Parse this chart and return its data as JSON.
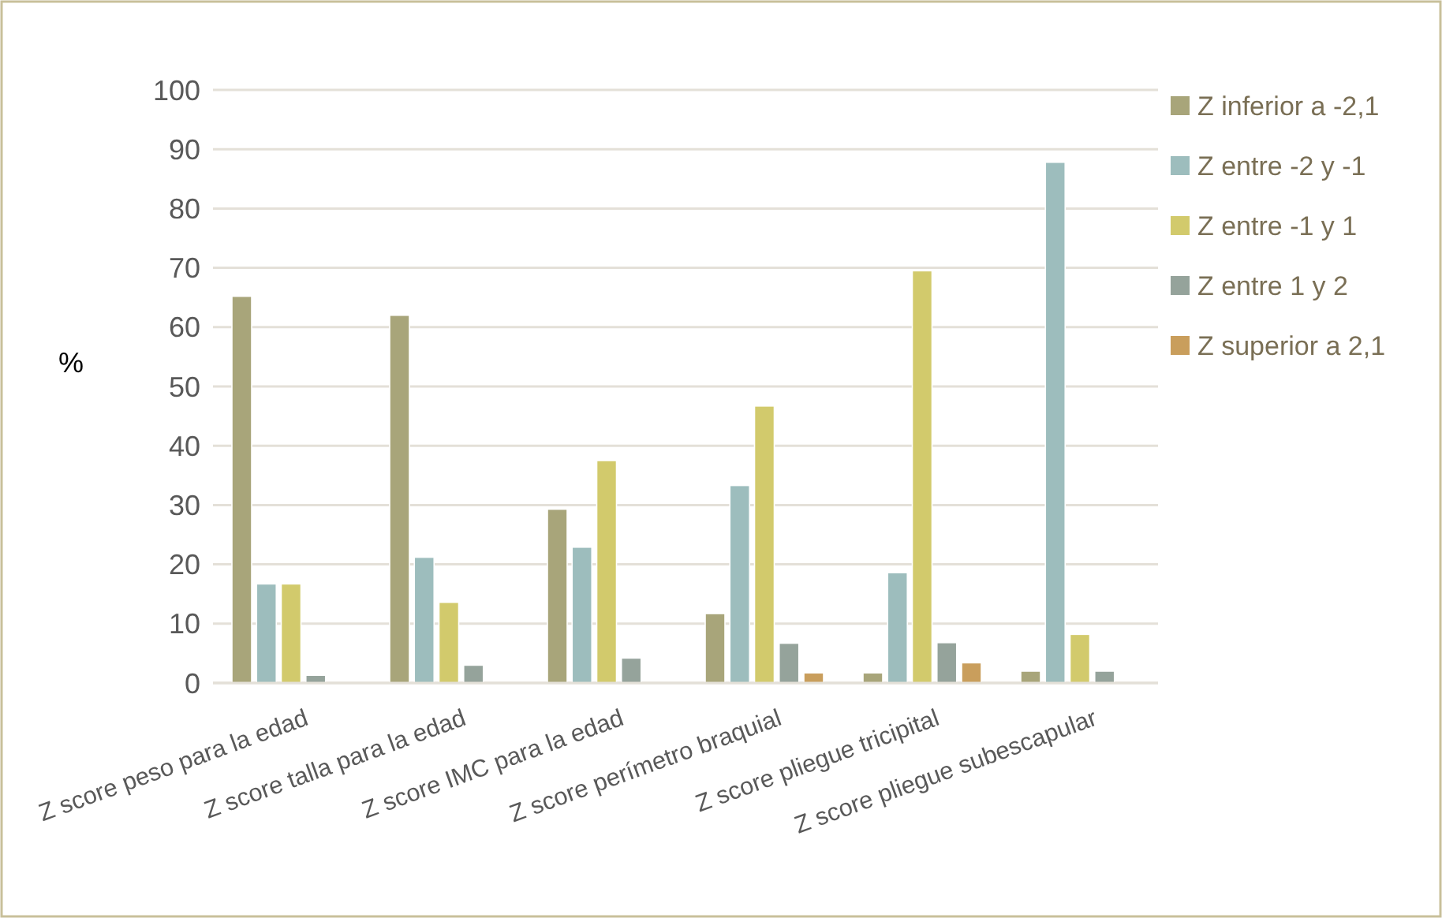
{
  "chart_data": {
    "type": "bar",
    "ylabel": "%",
    "categories": [
      "Z score peso para la edad",
      "Z score talla para la edad",
      "Z score IMC  para la edad",
      "Z score perímetro braquial",
      "Z score pliegue tricipital",
      "Z score pliegue subescapular"
    ],
    "series": [
      {
        "name": "Z inferior a -2,1",
        "color": "#a8a57a",
        "values": [
          65.2,
          62,
          29.3,
          11.7,
          1.7,
          2
        ]
      },
      {
        "name": "Z entre -2 y -1",
        "color": "#9dbdbd",
        "values": [
          16.7,
          21.2,
          22.9,
          33.3,
          18.6,
          87.8
        ]
      },
      {
        "name": "Z entre -1 y 1",
        "color": "#d2ca6c",
        "values": [
          16.7,
          13.6,
          37.5,
          46.7,
          69.5,
          8.2
        ]
      },
      {
        "name": "Z entre 1 y 2",
        "color": "#95a39b",
        "values": [
          1.3,
          3,
          4.2,
          6.7,
          6.8,
          2
        ]
      },
      {
        "name": "Z superior a 2,1",
        "color": "#c99e5c",
        "values": [
          0,
          0,
          0,
          1.7,
          3.4,
          0
        ]
      }
    ],
    "ylim": [
      0,
      100
    ],
    "yticks": [
      0,
      10,
      20,
      30,
      40,
      50,
      60,
      70,
      80,
      90,
      100
    ],
    "grid": "y",
    "legend": "right"
  }
}
